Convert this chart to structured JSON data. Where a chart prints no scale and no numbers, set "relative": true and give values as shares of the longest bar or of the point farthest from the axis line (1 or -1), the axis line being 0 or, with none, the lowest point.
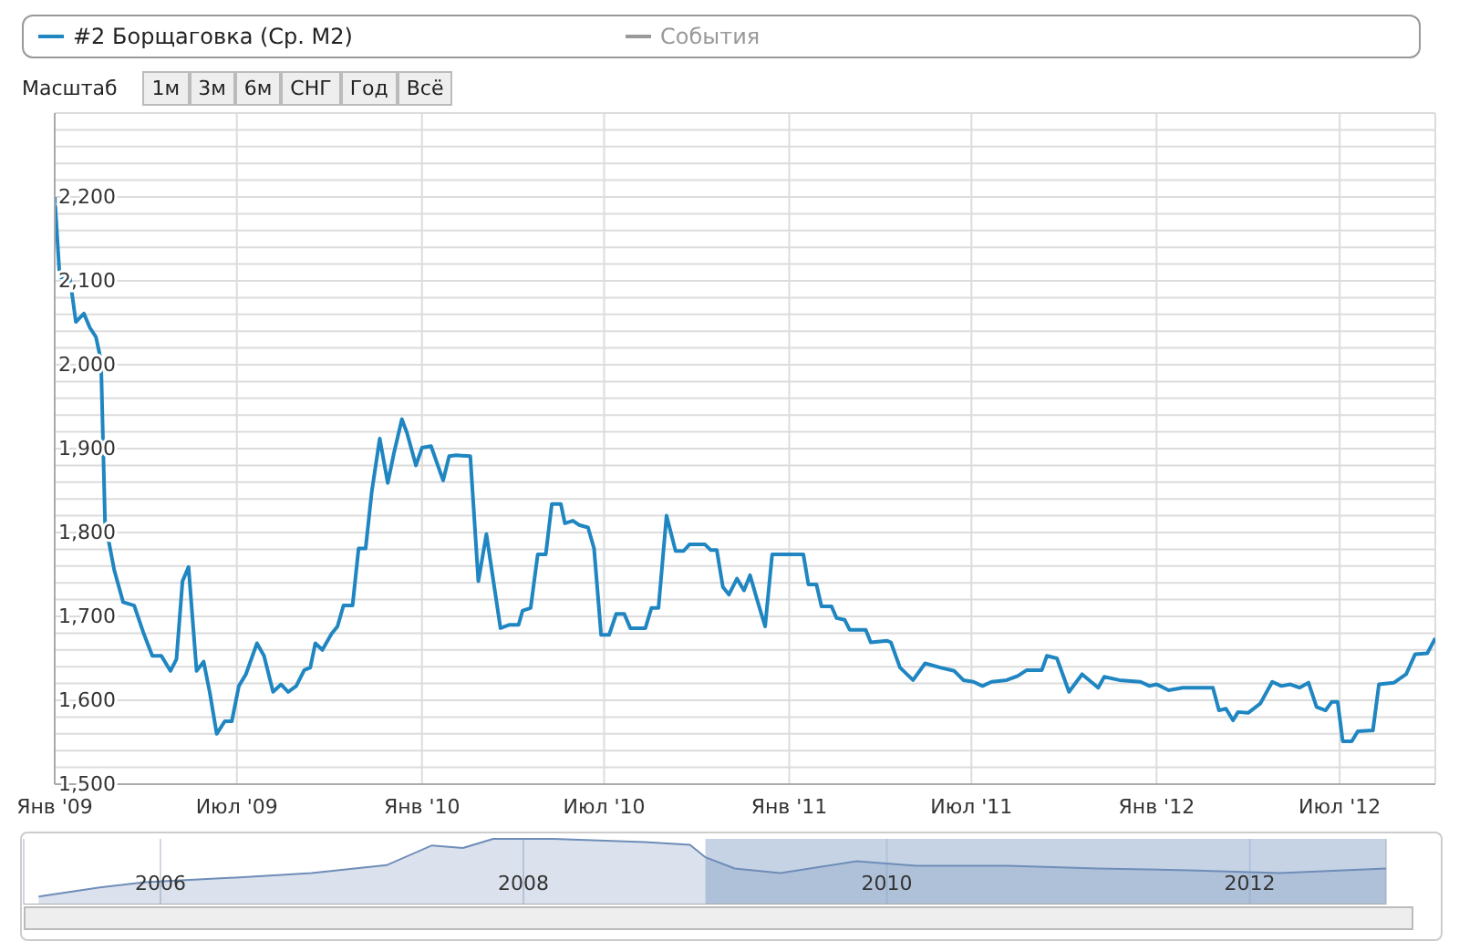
{
  "chart_data": [
    {
      "type": "line",
      "legend": "top",
      "grid": true,
      "annotations": [
        "Масштаб",
        "1м",
        "3м",
        "6м",
        "СНГ",
        "Год",
        "Всё"
      ],
      "xlim": [
        "2009-01-01",
        "2012-10-04"
      ],
      "xticks": [
        {
          "value": "2009-01-01",
          "label": "Янв '09"
        },
        {
          "value": "2009-07-01",
          "label": "Июл '09"
        },
        {
          "value": "2010-01-01",
          "label": "Янв '10"
        },
        {
          "value": "2010-07-01",
          "label": "Июл '10"
        },
        {
          "value": "2011-01-01",
          "label": "Янв '11"
        },
        {
          "value": "2011-07-01",
          "label": "Июл '11"
        },
        {
          "value": "2012-01-01",
          "label": "Янв '12"
        },
        {
          "value": "2012-07-01",
          "label": "Июл '12"
        }
      ],
      "ylim": [
        1500,
        2300
      ],
      "yticks": [
        {
          "value": 1500,
          "label": "1,500"
        },
        {
          "value": 1520,
          "label": null
        },
        {
          "value": 1540,
          "label": null
        },
        {
          "value": 1560,
          "label": null
        },
        {
          "value": 1580,
          "label": null
        },
        {
          "value": 1600,
          "label": "1,600"
        },
        {
          "value": 1620,
          "label": null
        },
        {
          "value": 1640,
          "label": null
        },
        {
          "value": 1660,
          "label": null
        },
        {
          "value": 1680,
          "label": null
        },
        {
          "value": 1700,
          "label": "1,700"
        },
        {
          "value": 1720,
          "label": null
        },
        {
          "value": 1740,
          "label": null
        },
        {
          "value": 1760,
          "label": null
        },
        {
          "value": 1780,
          "label": null
        },
        {
          "value": 1800,
          "label": "1,800"
        },
        {
          "value": 1820,
          "label": null
        },
        {
          "value": 1840,
          "label": null
        },
        {
          "value": 1860,
          "label": null
        },
        {
          "value": 1880,
          "label": null
        },
        {
          "value": 1900,
          "label": "1,900"
        },
        {
          "value": 1920,
          "label": null
        },
        {
          "value": 1940,
          "label": null
        },
        {
          "value": 1960,
          "label": null
        },
        {
          "value": 1980,
          "label": null
        },
        {
          "value": 2000,
          "label": "2,000"
        },
        {
          "value": 2020,
          "label": null
        },
        {
          "value": 2040,
          "label": null
        },
        {
          "value": 2060,
          "label": null
        },
        {
          "value": 2080,
          "label": null
        },
        {
          "value": 2100,
          "label": "2,100"
        },
        {
          "value": 2120,
          "label": null
        },
        {
          "value": 2140,
          "label": null
        },
        {
          "value": 2160,
          "label": null
        },
        {
          "value": 2180,
          "label": null
        },
        {
          "value": 2200,
          "label": "2,200"
        },
        {
          "value": 2220,
          "label": null
        },
        {
          "value": 2240,
          "label": null
        },
        {
          "value": 2260,
          "label": null
        },
        {
          "value": 2280,
          "label": null
        },
        {
          "value": 2300,
          "label": null
        }
      ],
      "series": [
        {
          "name": "#2 Борщаговка (Ср. М2)",
          "color": "#1f86c1",
          "x": [
            "2009-01-01",
            "2009-01-06",
            "2009-01-16",
            "2009-01-22",
            "2009-01-30",
            "2009-02-05",
            "2009-02-11",
            "2009-02-16",
            "2009-02-20",
            "2009-03-01",
            "2009-03-10",
            "2009-03-21",
            "2009-03-30",
            "2009-04-08",
            "2009-04-17",
            "2009-04-26",
            "2009-05-02",
            "2009-05-08",
            "2009-05-14",
            "2009-05-22",
            "2009-05-29",
            "2009-06-04",
            "2009-06-11",
            "2009-06-19",
            "2009-06-26",
            "2009-07-03",
            "2009-07-10",
            "2009-07-21",
            "2009-07-28",
            "2009-08-06",
            "2009-08-14",
            "2009-08-21",
            "2009-08-29",
            "2009-09-06",
            "2009-09-12",
            "2009-09-17",
            "2009-09-24",
            "2009-10-03",
            "2009-10-09",
            "2009-10-15",
            "2009-10-24",
            "2009-10-30",
            "2009-11-06",
            "2009-11-12",
            "2009-11-20",
            "2009-11-28",
            "2009-12-04",
            "2009-12-12",
            "2009-12-17",
            "2009-12-26",
            "2010-01-01",
            "2010-01-10",
            "2010-01-22",
            "2010-01-28",
            "2010-02-04",
            "2010-02-18",
            "2010-02-26",
            "2010-03-06",
            "2010-03-20",
            "2010-03-29",
            "2010-04-07",
            "2010-04-11",
            "2010-04-19",
            "2010-04-26",
            "2010-05-04",
            "2010-05-10",
            "2010-05-19",
            "2010-05-23",
            "2010-05-31",
            "2010-06-06",
            "2010-06-15",
            "2010-06-21",
            "2010-06-28",
            "2010-07-06",
            "2010-07-13",
            "2010-07-21",
            "2010-07-27",
            "2010-08-11",
            "2010-08-17",
            "2010-08-24",
            "2010-09-01",
            "2010-09-10",
            "2010-09-18",
            "2010-09-24",
            "2010-10-09",
            "2010-10-15",
            "2010-10-21",
            "2010-10-27",
            "2010-11-02",
            "2010-11-10",
            "2010-11-17",
            "2010-11-23",
            "2010-11-30",
            "2010-12-08",
            "2010-12-15",
            "2011-01-15",
            "2011-01-20",
            "2011-01-28",
            "2011-02-02",
            "2011-02-12",
            "2011-02-17",
            "2011-02-25",
            "2011-03-02",
            "2011-03-18",
            "2011-03-23",
            "2011-04-08",
            "2011-04-12",
            "2011-04-21",
            "2011-05-04",
            "2011-05-16",
            "2011-05-31",
            "2011-06-14",
            "2011-06-23",
            "2011-07-03",
            "2011-07-12",
            "2011-07-21",
            "2011-08-05",
            "2011-08-16",
            "2011-08-25",
            "2011-09-09",
            "2011-09-14",
            "2011-09-24",
            "2011-10-06",
            "2011-10-19",
            "2011-11-04",
            "2011-11-10",
            "2011-11-25",
            "2011-12-16",
            "2011-12-25",
            "2012-01-01",
            "2012-01-13",
            "2012-01-27",
            "2012-02-11",
            "2012-02-26",
            "2012-03-03",
            "2012-03-10",
            "2012-03-17",
            "2012-03-22",
            "2012-04-01",
            "2012-04-13",
            "2012-04-25",
            "2012-05-04",
            "2012-05-13",
            "2012-05-22",
            "2012-05-31",
            "2012-06-08",
            "2012-06-17",
            "2012-06-23",
            "2012-06-29",
            "2012-07-04",
            "2012-07-13",
            "2012-07-19",
            "2012-08-03",
            "2012-08-09",
            "2012-08-24",
            "2012-09-05",
            "2012-09-14",
            "2012-09-26",
            "2012-10-04"
          ],
          "values": [
            2200,
            2104,
            2104,
            2051,
            2061,
            2044,
            2033,
            2005,
            1813,
            1756,
            1717,
            1713,
            1681,
            1653,
            1653,
            1635,
            1649,
            1742,
            1759,
            1635,
            1646,
            1610,
            1560,
            1575,
            1575,
            1617,
            1631,
            1668,
            1653,
            1610,
            1619,
            1610,
            1617,
            1636,
            1639,
            1668,
            1660,
            1679,
            1688,
            1713,
            1713,
            1781,
            1781,
            1848,
            1912,
            1859,
            1894,
            1935,
            1919,
            1880,
            1901,
            1903,
            1862,
            1891,
            1892,
            1891,
            1742,
            1798,
            1686,
            1690,
            1690,
            1707,
            1710,
            1774,
            1774,
            1834,
            1834,
            1811,
            1814,
            1809,
            1806,
            1781,
            1678,
            1678,
            1703,
            1703,
            1686,
            1686,
            1710,
            1710,
            1820,
            1778,
            1778,
            1786,
            1786,
            1779,
            1779,
            1735,
            1726,
            1745,
            1731,
            1749,
            1720,
            1688,
            1774,
            1774,
            1738,
            1738,
            1712,
            1712,
            1698,
            1696,
            1684,
            1684,
            1669,
            1671,
            1669,
            1639,
            1624,
            1644,
            1639,
            1635,
            1624,
            1622,
            1617,
            1622,
            1624,
            1629,
            1636,
            1636,
            1653,
            1650,
            1610,
            1631,
            1615,
            1628,
            1624,
            1622,
            1617,
            1619,
            1612,
            1615,
            1615,
            1615,
            1588,
            1590,
            1576,
            1586,
            1585,
            1596,
            1622,
            1617,
            1619,
            1615,
            1621,
            1592,
            1588,
            1598,
            1598,
            1551,
            1551,
            1563,
            1564,
            1619,
            1621,
            1631,
            1655,
            1656,
            1674
          ]
        },
        {
          "name": "События",
          "color": "#999999"
        }
      ]
    },
    {
      "type": "area",
      "relative": true,
      "grid": "x",
      "tick_labels": "x",
      "xlim": [
        "2005-04",
        "2012-10"
      ],
      "xticks": [
        {
          "value": "2006-01-01",
          "label": "2006"
        },
        {
          "value": "2008-01-01",
          "label": "2008"
        },
        {
          "value": "2010-01-01",
          "label": "2010"
        },
        {
          "value": "2012-01-01",
          "label": "2012"
        }
      ],
      "bands": [
        {
          "axis": "x",
          "from": "2009-01-01",
          "to": "2012-10",
          "color": "#9fb5d4"
        }
      ],
      "series": [
        {
          "color": "#6f8db8",
          "x": [
            "2005-05",
            "2005-09",
            "2005-12",
            "2006-06",
            "2006-11",
            "2007-04",
            "2007-07",
            "2007-09",
            "2007-11",
            "2008-03",
            "2008-09",
            "2008-12",
            "2009-01",
            "2009-03",
            "2009-06",
            "2009-11",
            "2010-03",
            "2010-09",
            "2011-03",
            "2011-09",
            "2012-03",
            "2012-10"
          ],
          "values": [
            0.12,
            0.26,
            0.34,
            0.41,
            0.48,
            0.6,
            0.9,
            0.86,
            1,
            1,
            0.95,
            0.91,
            0.72,
            0.55,
            0.48,
            0.66,
            0.59,
            0.59,
            0.55,
            0.52,
            0.48,
            0.55
          ]
        }
      ]
    }
  ]
}
